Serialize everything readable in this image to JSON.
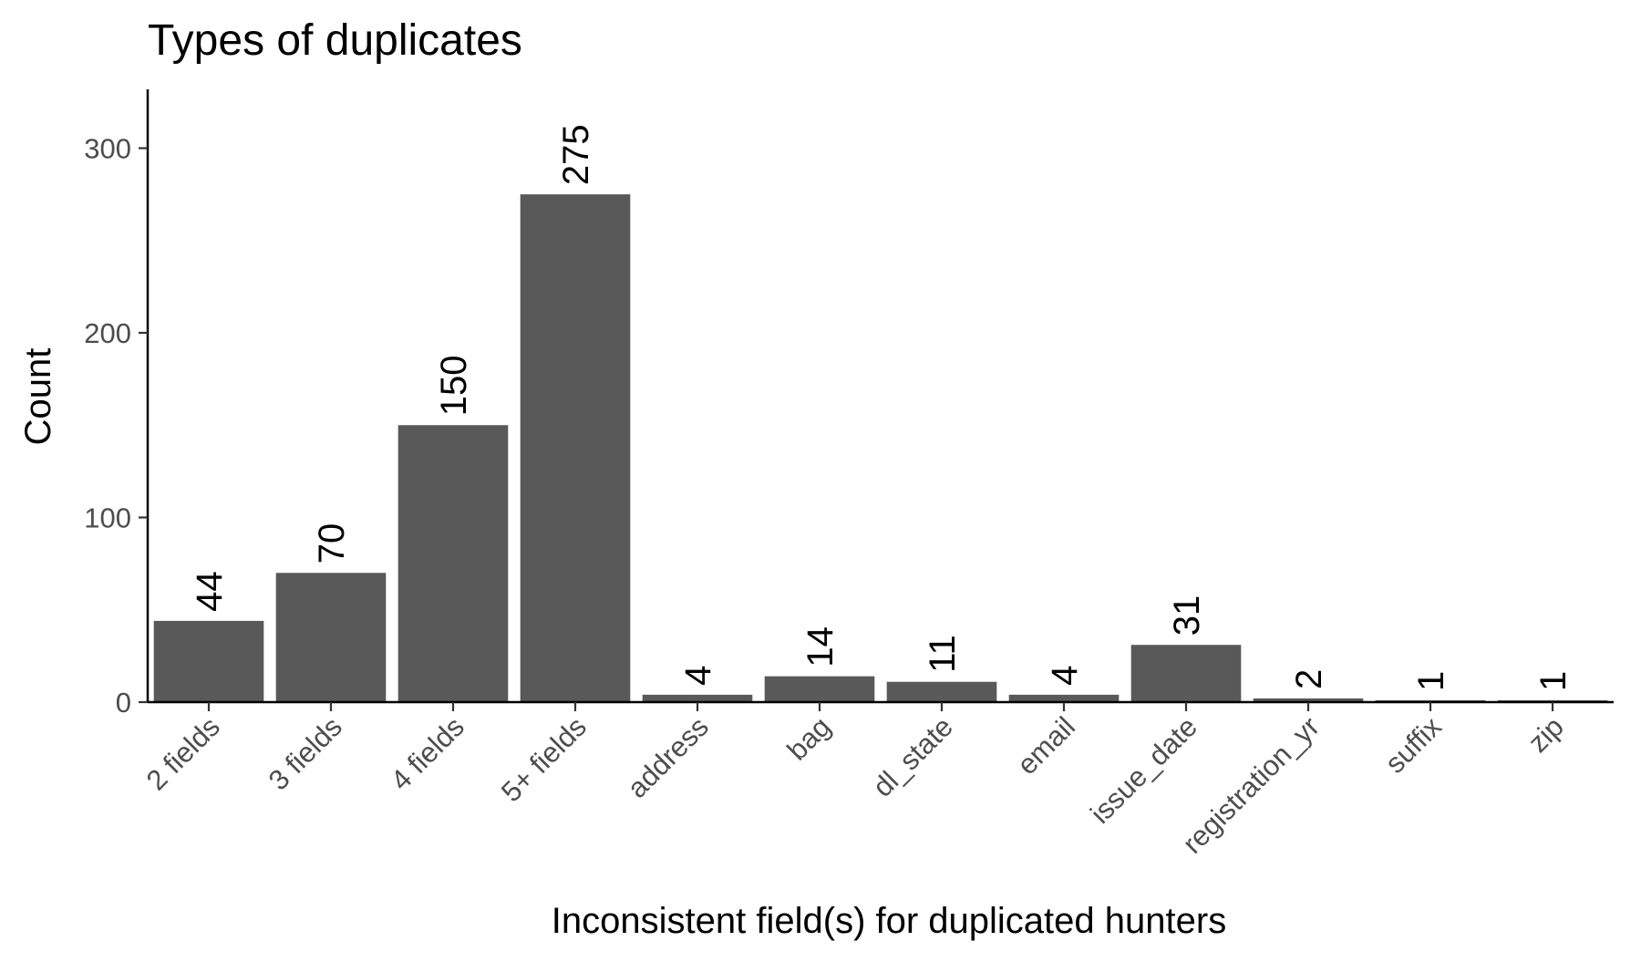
{
  "chart_data": {
    "type": "bar",
    "title": "Types of duplicates",
    "xlabel": "Inconsistent field(s) for duplicated hunters",
    "ylabel": "Count",
    "categories": [
      "2 fields",
      "3 fields",
      "4 fields",
      "5+ fields",
      "address",
      "bag",
      "dl_state",
      "email",
      "issue_date",
      "registration_yr",
      "suffix",
      "zip"
    ],
    "values": [
      44,
      70,
      150,
      275,
      4,
      14,
      11,
      4,
      31,
      2,
      1,
      1
    ],
    "data_labels": [
      "44",
      "70",
      "150",
      "275",
      "4",
      "14",
      "11",
      "4",
      "31",
      "2",
      "1",
      "1"
    ],
    "yticks": [
      0,
      100,
      200,
      300
    ],
    "ylim": [
      0,
      330
    ],
    "grid": false,
    "legend": "none",
    "bar_color": "#595959"
  }
}
